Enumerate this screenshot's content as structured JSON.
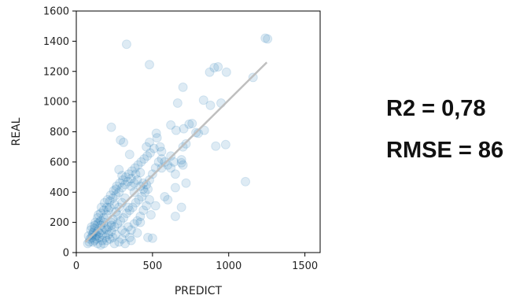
{
  "chart_data": {
    "type": "scatter",
    "xlabel": "PREDICT",
    "ylabel": "REAL",
    "xlim": [
      0,
      1600
    ],
    "ylim": [
      0,
      1600
    ],
    "x_ticks": [
      0,
      500,
      1000,
      1500
    ],
    "y_ticks": [
      0,
      200,
      400,
      600,
      800,
      1000,
      1200,
      1400,
      1600
    ],
    "grid": false,
    "point_color": "#1f77b4",
    "point_alpha": 0.15,
    "fit_line": {
      "x": [
        60,
        1250
      ],
      "y": [
        70,
        1260
      ],
      "color": "#bfbfbf"
    },
    "points": [
      [
        330,
        1380
      ],
      [
        480,
        1245
      ],
      [
        1240,
        1420
      ],
      [
        1255,
        1415
      ],
      [
        930,
        1230
      ],
      [
        905,
        1225
      ],
      [
        875,
        1195
      ],
      [
        985,
        1195
      ],
      [
        1160,
        1160
      ],
      [
        700,
        1095
      ],
      [
        665,
        990
      ],
      [
        835,
        1010
      ],
      [
        950,
        990
      ],
      [
        880,
        975
      ],
      [
        760,
        855
      ],
      [
        740,
        850
      ],
      [
        620,
        845
      ],
      [
        705,
        820
      ],
      [
        655,
        810
      ],
      [
        840,
        810
      ],
      [
        230,
        830
      ],
      [
        525,
        790
      ],
      [
        800,
        790
      ],
      [
        785,
        795
      ],
      [
        530,
        760
      ],
      [
        290,
        745
      ],
      [
        480,
        730
      ],
      [
        310,
        730
      ],
      [
        720,
        720
      ],
      [
        980,
        715
      ],
      [
        915,
        705
      ],
      [
        460,
        700
      ],
      [
        510,
        690
      ],
      [
        700,
        700
      ],
      [
        350,
        650
      ],
      [
        560,
        670
      ],
      [
        620,
        640
      ],
      [
        690,
        615
      ],
      [
        700,
        580
      ],
      [
        560,
        560
      ],
      [
        690,
        595
      ],
      [
        650,
        520
      ],
      [
        1110,
        470
      ],
      [
        720,
        460
      ],
      [
        650,
        430
      ],
      [
        580,
        370
      ],
      [
        690,
        300
      ],
      [
        650,
        240
      ],
      [
        600,
        350
      ],
      [
        520,
        310
      ],
      [
        490,
        250
      ],
      [
        470,
        100
      ],
      [
        500,
        95
      ],
      [
        420,
        200
      ],
      [
        440,
        460
      ],
      [
        380,
        400
      ],
      [
        390,
        520
      ],
      [
        300,
        510
      ],
      [
        280,
        550
      ],
      [
        420,
        530
      ],
      [
        360,
        440
      ],
      [
        340,
        300
      ],
      [
        320,
        360
      ],
      [
        270,
        250
      ],
      [
        260,
        420
      ],
      [
        250,
        320
      ],
      [
        230,
        200
      ],
      [
        210,
        280
      ],
      [
        200,
        150
      ],
      [
        180,
        230
      ],
      [
        170,
        120
      ],
      [
        160,
        180
      ],
      [
        150,
        200
      ],
      [
        140,
        140
      ],
      [
        130,
        110
      ],
      [
        120,
        160
      ],
      [
        110,
        130
      ],
      [
        100,
        100
      ],
      [
        95,
        150
      ],
      [
        90,
        90
      ],
      [
        85,
        70
      ],
      [
        80,
        110
      ],
      [
        75,
        60
      ],
      [
        110,
        70
      ],
      [
        130,
        90
      ],
      [
        150,
        100
      ],
      [
        170,
        80
      ],
      [
        190,
        100
      ],
      [
        210,
        120
      ],
      [
        230,
        140
      ],
      [
        250,
        170
      ],
      [
        270,
        190
      ],
      [
        290,
        210
      ],
      [
        310,
        230
      ],
      [
        330,
        260
      ],
      [
        350,
        280
      ],
      [
        370,
        300
      ],
      [
        390,
        330
      ],
      [
        410,
        350
      ],
      [
        430,
        370
      ],
      [
        450,
        400
      ],
      [
        470,
        420
      ],
      [
        200,
        250
      ],
      [
        220,
        300
      ],
      [
        240,
        220
      ],
      [
        260,
        270
      ],
      [
        280,
        300
      ],
      [
        300,
        330
      ],
      [
        180,
        200
      ],
      [
        160,
        210
      ],
      [
        140,
        190
      ],
      [
        120,
        180
      ],
      [
        100,
        170
      ],
      [
        140,
        230
      ],
      [
        160,
        260
      ],
      [
        180,
        280
      ],
      [
        200,
        300
      ],
      [
        220,
        340
      ],
      [
        240,
        360
      ],
      [
        260,
        380
      ],
      [
        280,
        400
      ],
      [
        300,
        430
      ],
      [
        320,
        450
      ],
      [
        340,
        470
      ],
      [
        360,
        490
      ],
      [
        380,
        460
      ],
      [
        400,
        480
      ],
      [
        420,
        440
      ],
      [
        440,
        420
      ],
      [
        460,
        450
      ],
      [
        480,
        480
      ],
      [
        500,
        520
      ],
      [
        520,
        560
      ],
      [
        540,
        600
      ],
      [
        560,
        620
      ],
      [
        580,
        600
      ],
      [
        600,
        580
      ],
      [
        620,
        560
      ],
      [
        640,
        600
      ],
      [
        300,
        150
      ],
      [
        320,
        130
      ],
      [
        340,
        170
      ],
      [
        360,
        150
      ],
      [
        380,
        190
      ],
      [
        400,
        210
      ],
      [
        420,
        240
      ],
      [
        440,
        280
      ],
      [
        460,
        310
      ],
      [
        480,
        350
      ],
      [
        260,
        120
      ],
      [
        240,
        100
      ],
      [
        220,
        90
      ],
      [
        200,
        80
      ],
      [
        180,
        60
      ],
      [
        160,
        50
      ],
      [
        140,
        60
      ],
      [
        120,
        80
      ],
      [
        300,
        90
      ],
      [
        350,
        100
      ],
      [
        400,
        130
      ],
      [
        250,
        60
      ],
      [
        280,
        70
      ],
      [
        320,
        60
      ],
      [
        360,
        80
      ],
      [
        210,
        170
      ],
      [
        230,
        180
      ],
      [
        190,
        160
      ],
      [
        170,
        150
      ],
      [
        150,
        130
      ],
      [
        130,
        120
      ],
      [
        115,
        140
      ],
      [
        105,
        115
      ],
      [
        125,
        200
      ],
      [
        145,
        250
      ],
      [
        165,
        300
      ],
      [
        185,
        330
      ],
      [
        205,
        350
      ],
      [
        225,
        380
      ],
      [
        245,
        410
      ],
      [
        265,
        440
      ],
      [
        285,
        460
      ],
      [
        305,
        480
      ],
      [
        325,
        500
      ],
      [
        345,
        520
      ],
      [
        365,
        540
      ],
      [
        385,
        560
      ],
      [
        405,
        580
      ],
      [
        425,
        600
      ],
      [
        445,
        620
      ],
      [
        465,
        640
      ],
      [
        485,
        660
      ],
      [
        550,
        700
      ]
    ]
  },
  "stats": {
    "r2": "R2 = 0,78",
    "rmse": "RMSE = 86"
  }
}
